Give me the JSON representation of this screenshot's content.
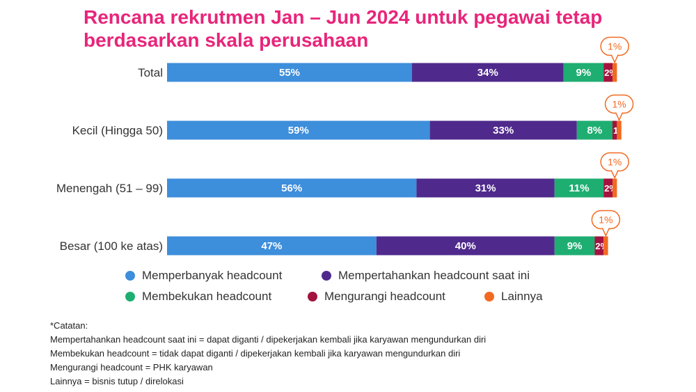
{
  "chart_data": {
    "type": "bar",
    "orientation": "horizontal",
    "stacked": true,
    "title_lines": [
      "Rencana rekrutmen Jan – Jun 2024 untuk pegawai tetap",
      "berdasarkan skala perusahaan"
    ],
    "categories": [
      "Total",
      "Kecil (Hingga 50)",
      "Menengah (51 – 99)",
      "Besar (100 ke atas)"
    ],
    "series": [
      {
        "name": "Memperbanyak headcount",
        "color": "#3d8edb",
        "values": [
          55,
          59,
          56,
          47
        ]
      },
      {
        "name": "Mempertahankan headcount saat ini",
        "color": "#4f2a8c",
        "values": [
          34,
          33,
          31,
          40
        ]
      },
      {
        "name": "Membekukan headcount",
        "color": "#1fae72",
        "values": [
          9,
          8,
          11,
          9
        ]
      },
      {
        "name": "Mengurangi headcount",
        "color": "#a3133f",
        "values": [
          2,
          1,
          2,
          2
        ]
      },
      {
        "name": "Lainnya",
        "color": "#f26a21",
        "values": [
          1,
          1,
          1,
          1
        ]
      }
    ],
    "value_suffix": "%",
    "legend_position": "bottom",
    "grid": false
  },
  "notes": {
    "heading": "*Catatan:",
    "lines": [
      "Mempertahankan headcount saat ini = dapat diganti / dipekerjakan kembali jika karyawan mengundurkan diri",
      "Membekukan headcount = tidak dapat diganti / dipekerjakan kembali jika karyawan mengundurkan diri",
      "Mengurangi headcount = PHK karyawan",
      "Lainnya = bisnis tutup / direlokasi"
    ]
  }
}
